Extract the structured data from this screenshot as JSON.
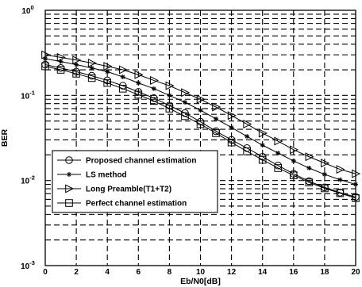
{
  "chart_data": {
    "type": "line",
    "title": "",
    "xlabel": "Eb/N0[dB]",
    "ylabel": "BER",
    "xlim": [
      0,
      20
    ],
    "ylim": [
      0.001,
      1
    ],
    "yscale": "log",
    "x_ticks": [
      "0",
      "2",
      "4",
      "6",
      "8",
      "10",
      "12",
      "14",
      "16",
      "18",
      "20"
    ],
    "y_ticks": [
      {
        "base": "10",
        "exp": "0"
      },
      {
        "base": "10",
        "exp": "-1"
      },
      {
        "base": "10",
        "exp": "-2"
      },
      {
        "base": "10",
        "exp": "-3"
      }
    ],
    "grid": true,
    "legend_position": "lower-left",
    "x": [
      0,
      1,
      2,
      3,
      4,
      5,
      6,
      7,
      8,
      9,
      10,
      11,
      12,
      13,
      14,
      15,
      16,
      17,
      18,
      19,
      20
    ],
    "series": [
      {
        "name": "Proposed channel estimation",
        "marker": "circle",
        "values": [
          0.23,
          0.21,
          0.19,
          0.17,
          0.15,
          0.13,
          0.11,
          0.093,
          0.076,
          0.062,
          0.049,
          0.038,
          0.03,
          0.024,
          0.019,
          0.015,
          0.012,
          0.0098,
          0.0083,
          0.0072,
          0.0064
        ]
      },
      {
        "name": "LS method",
        "marker": "star",
        "values": [
          0.27,
          0.25,
          0.23,
          0.21,
          0.19,
          0.165,
          0.14,
          0.12,
          0.1,
          0.083,
          0.067,
          0.053,
          0.042,
          0.033,
          0.026,
          0.021,
          0.017,
          0.014,
          0.0118,
          0.0102,
          0.009
        ]
      },
      {
        "name": "Long Preamble(T1+T2)",
        "marker": "triangle-right",
        "values": [
          0.3,
          0.28,
          0.26,
          0.24,
          0.22,
          0.2,
          0.175,
          0.15,
          0.13,
          0.108,
          0.09,
          0.073,
          0.058,
          0.046,
          0.036,
          0.029,
          0.023,
          0.019,
          0.016,
          0.0135,
          0.012
        ]
      },
      {
        "name": "Perfect channel estimation",
        "marker": "square",
        "values": [
          0.22,
          0.2,
          0.18,
          0.16,
          0.14,
          0.12,
          0.102,
          0.086,
          0.07,
          0.057,
          0.046,
          0.036,
          0.028,
          0.022,
          0.0175,
          0.014,
          0.0115,
          0.0095,
          0.0081,
          0.0071,
          0.0062
        ]
      }
    ]
  }
}
